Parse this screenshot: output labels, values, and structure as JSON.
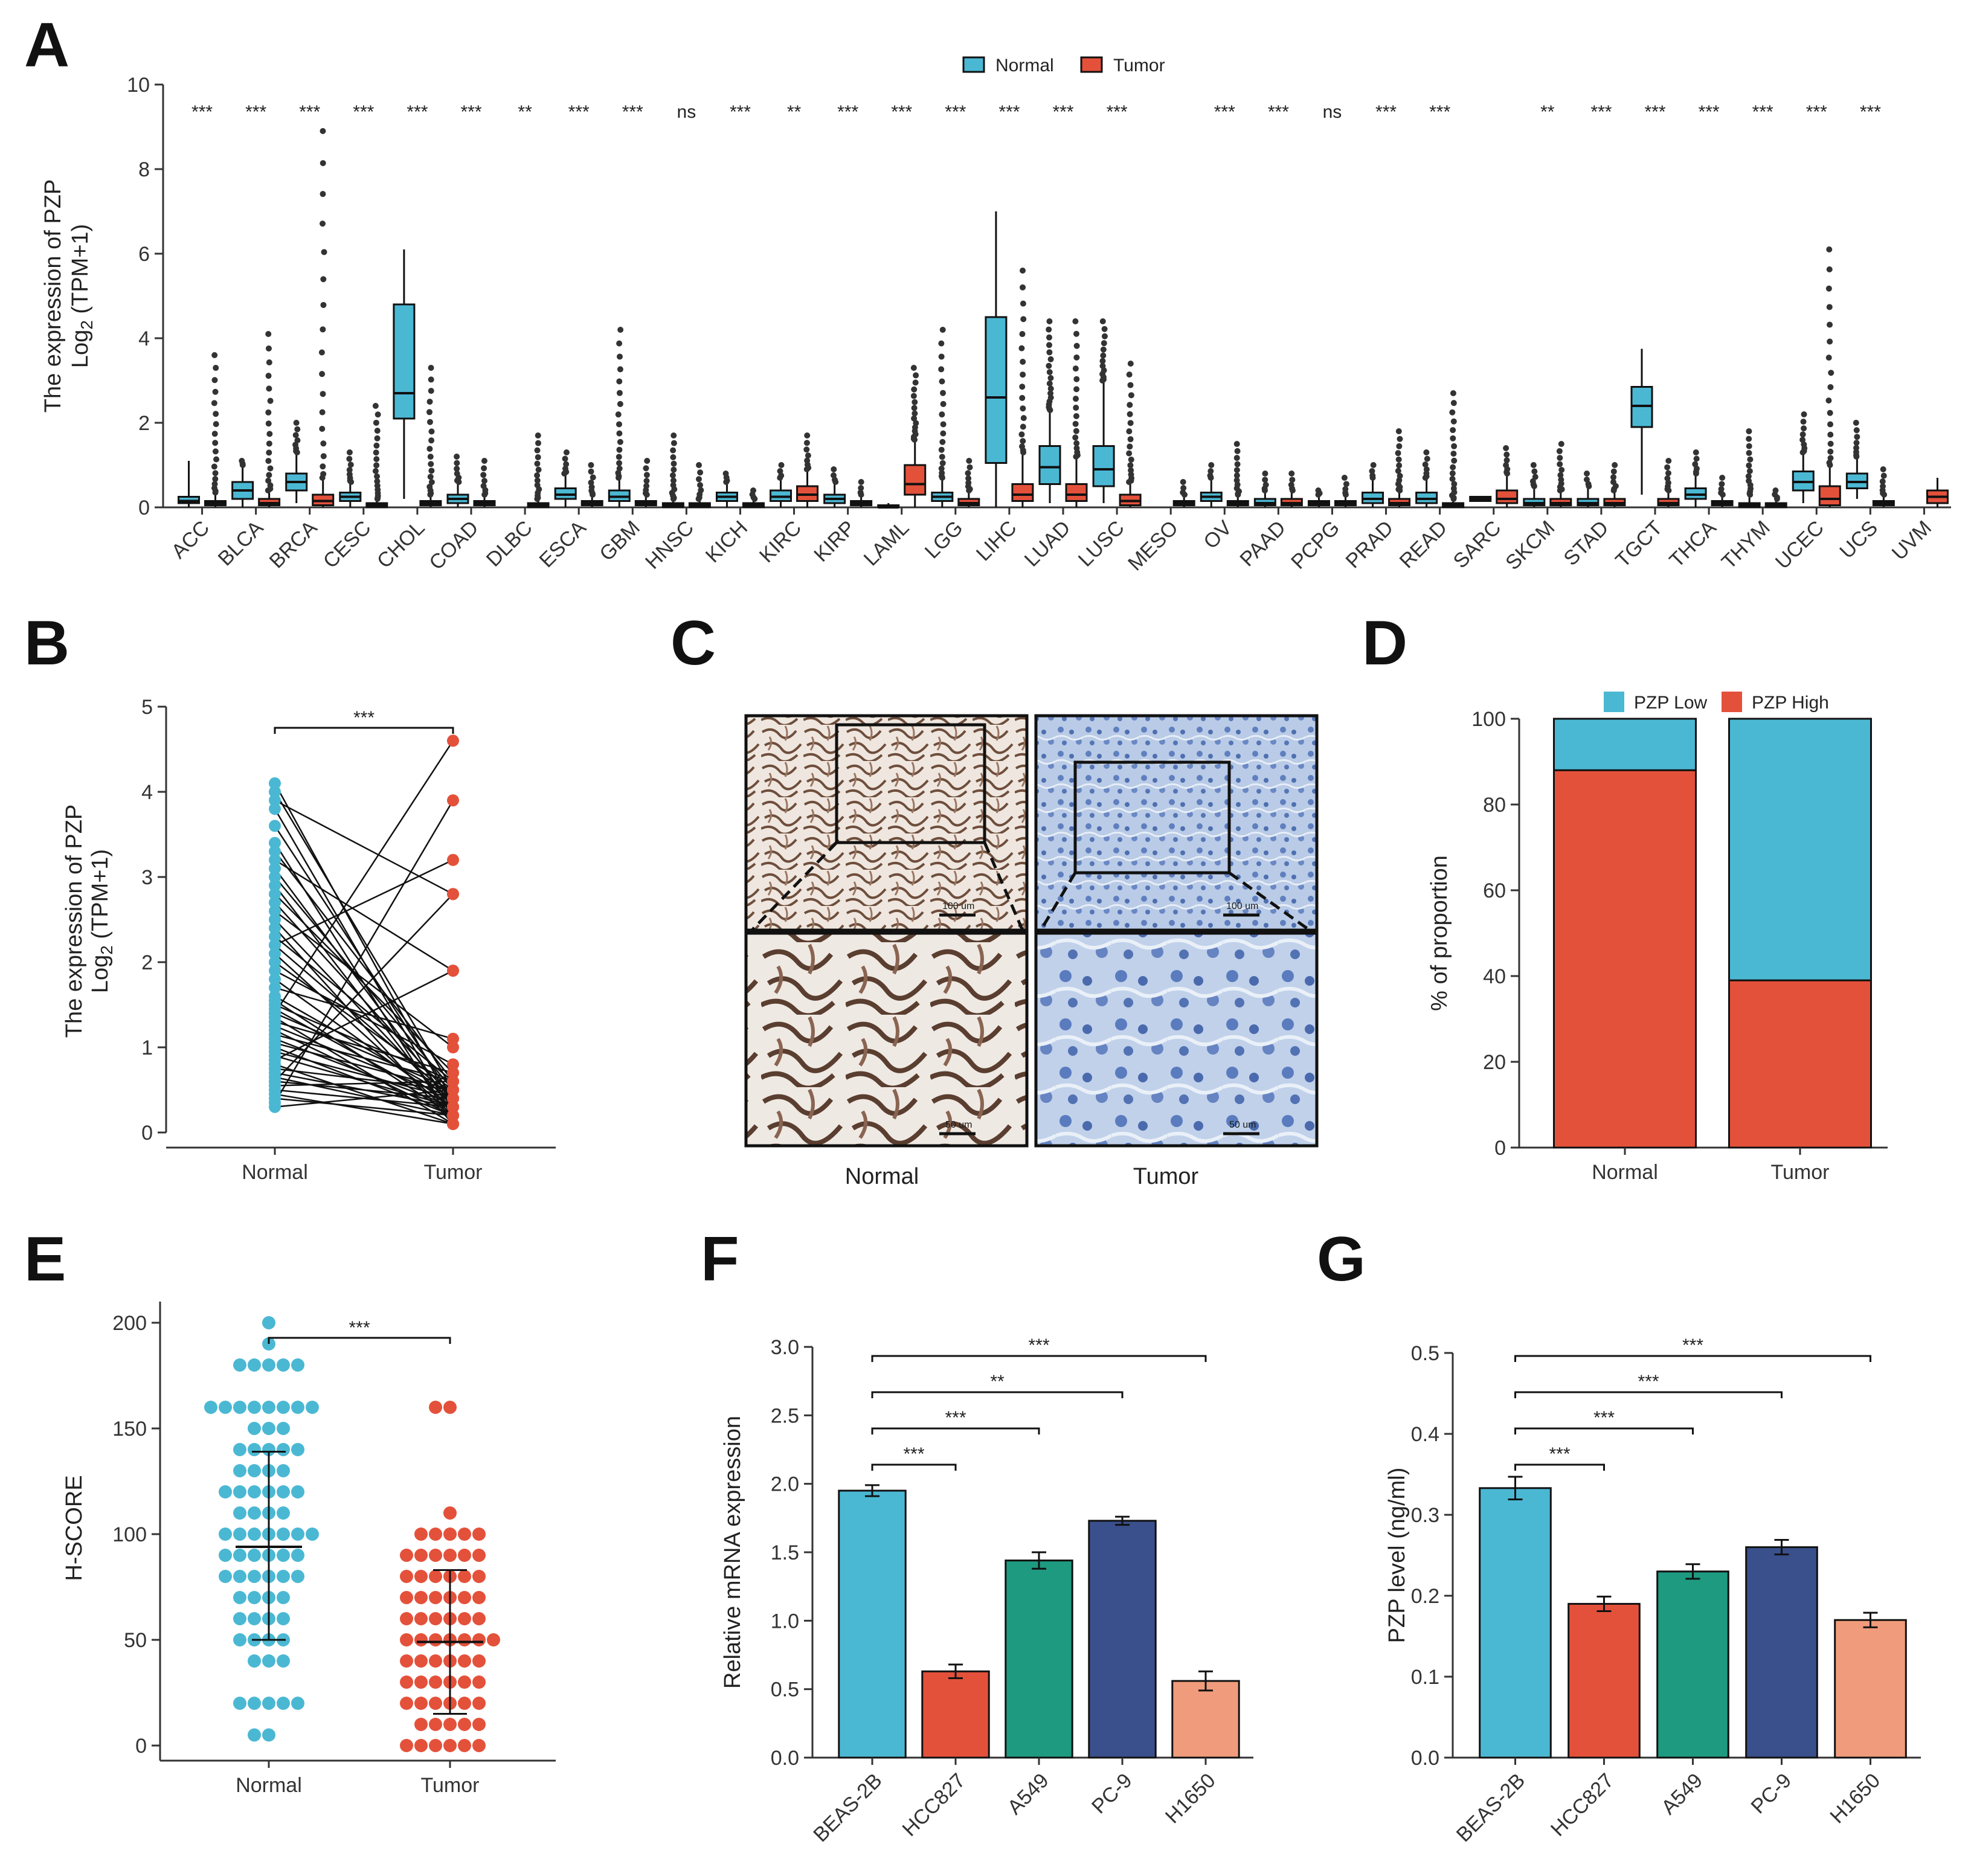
{
  "panels": {
    "A": "A",
    "B": "B",
    "C": "C",
    "D": "D",
    "E": "E",
    "F": "F",
    "G": "G"
  },
  "colors": {
    "normal": "#4bb8d3",
    "tumor": "#e4513b",
    "teal": "#1e9a80",
    "navy": "#3a508c",
    "salmon": "#f09c7c",
    "axis": "#333333"
  },
  "chart_data": [
    {
      "id": "A",
      "type": "box",
      "ylabel": "The expression of PZP",
      "ylabel2": "Log2 (TPM+1)",
      "ylim": [
        0,
        10
      ],
      "yticks": [
        0,
        2,
        4,
        6,
        8,
        10
      ],
      "legend": [
        "Normal",
        "Tumor"
      ],
      "categories": [
        "ACC",
        "BLCA",
        "BRCA",
        "CESC",
        "CHOL",
        "COAD",
        "DLBC",
        "ESCA",
        "GBM",
        "HNSC",
        "KICH",
        "KIRC",
        "KIRP",
        "LAML",
        "LGG",
        "LIHC",
        "LUAD",
        "LUSC",
        "MESO",
        "OV",
        "PAAD",
        "PCPG",
        "PRAD",
        "READ",
        "SARC",
        "SKCM",
        "STAD",
        "TGCT",
        "THCA",
        "THYM",
        "UCEC",
        "UCS",
        "UVM"
      ],
      "significance": [
        "***",
        "***",
        "***",
        "***",
        "***",
        "***",
        "**",
        "***",
        "***",
        "ns",
        "***",
        "**",
        "***",
        "***",
        "***",
        "***",
        "***",
        "***",
        "",
        "***",
        "***",
        "ns",
        "***",
        "***",
        "",
        "**",
        "***",
        "***",
        "***",
        "***",
        "***",
        "***",
        ""
      ],
      "normal": [
        {
          "q1": 0.1,
          "med": 0.15,
          "q3": 0.25,
          "wl": 0.0,
          "wh": 1.1,
          "max": 1.1
        },
        {
          "q1": 0.2,
          "med": 0.4,
          "q3": 0.6,
          "wl": 0.0,
          "wh": 1.0,
          "max": 1.1
        },
        {
          "q1": 0.4,
          "med": 0.6,
          "q3": 0.8,
          "wl": 0.1,
          "wh": 1.3,
          "max": 2.0
        },
        {
          "q1": 0.15,
          "med": 0.25,
          "q3": 0.35,
          "wl": 0.0,
          "wh": 0.6,
          "max": 1.3
        },
        {
          "q1": 2.1,
          "med": 2.7,
          "q3": 4.8,
          "wl": 0.2,
          "wh": 6.1,
          "max": 6.1
        },
        {
          "q1": 0.1,
          "med": 0.2,
          "q3": 0.3,
          "wl": 0.0,
          "wh": 0.6,
          "max": 1.2
        },
        null,
        {
          "q1": 0.2,
          "med": 0.3,
          "q3": 0.45,
          "wl": 0.0,
          "wh": 0.8,
          "max": 1.3
        },
        {
          "q1": 0.15,
          "med": 0.25,
          "q3": 0.4,
          "wl": 0.0,
          "wh": 0.7,
          "max": 4.2
        },
        {
          "q1": 0.0,
          "med": 0.05,
          "q3": 0.1,
          "wl": 0.0,
          "wh": 0.2,
          "max": 1.7
        },
        {
          "q1": 0.15,
          "med": 0.25,
          "q3": 0.35,
          "wl": 0.0,
          "wh": 0.6,
          "max": 0.8
        },
        {
          "q1": 0.15,
          "med": 0.25,
          "q3": 0.4,
          "wl": 0.0,
          "wh": 0.7,
          "max": 1.0
        },
        {
          "q1": 0.1,
          "med": 0.2,
          "q3": 0.3,
          "wl": 0.0,
          "wh": 0.6,
          "max": 0.9
        },
        {
          "q1": 0.0,
          "med": 0.0,
          "q3": 0.05,
          "wl": 0.0,
          "wh": 0.1,
          "max": 0.1
        },
        {
          "q1": 0.15,
          "med": 0.25,
          "q3": 0.35,
          "wl": 0.0,
          "wh": 0.7,
          "max": 4.2
        },
        {
          "q1": 1.05,
          "med": 2.6,
          "q3": 4.5,
          "wl": 0.0,
          "wh": 7.0,
          "max": 7.0
        },
        {
          "q1": 0.55,
          "med": 0.95,
          "q3": 1.45,
          "wl": 0.1,
          "wh": 2.3,
          "max": 4.4
        },
        {
          "q1": 0.5,
          "med": 0.9,
          "q3": 1.45,
          "wl": 0.1,
          "wh": 3.0,
          "max": 4.4
        },
        null,
        {
          "q1": 0.15,
          "med": 0.25,
          "q3": 0.35,
          "wl": 0.0,
          "wh": 0.7,
          "max": 1.0
        },
        {
          "q1": 0.05,
          "med": 0.1,
          "q3": 0.2,
          "wl": 0.0,
          "wh": 0.4,
          "max": 0.8
        },
        {
          "q1": 0.05,
          "med": 0.1,
          "q3": 0.15,
          "wl": 0.0,
          "wh": 0.3,
          "max": 0.4
        },
        {
          "q1": 0.1,
          "med": 0.2,
          "q3": 0.35,
          "wl": 0.0,
          "wh": 0.7,
          "max": 1.0
        },
        {
          "q1": 0.1,
          "med": 0.2,
          "q3": 0.35,
          "wl": 0.0,
          "wh": 0.7,
          "max": 1.3
        },
        {
          "q1": 0.15,
          "med": 0.2,
          "q3": 0.25,
          "wl": 0.15,
          "wh": 0.25,
          "max": 0.25
        },
        {
          "q1": 0.05,
          "med": 0.1,
          "q3": 0.2,
          "wl": 0.0,
          "wh": 0.5,
          "max": 1.0
        },
        {
          "q1": 0.05,
          "med": 0.1,
          "q3": 0.2,
          "wl": 0.0,
          "wh": 0.5,
          "max": 0.8
        },
        {
          "q1": 1.9,
          "med": 2.4,
          "q3": 2.85,
          "wl": 0.3,
          "wh": 3.75,
          "max": 3.75
        },
        {
          "q1": 0.2,
          "med": 0.3,
          "q3": 0.45,
          "wl": 0.0,
          "wh": 0.8,
          "max": 1.3
        },
        {
          "q1": 0.0,
          "med": 0.05,
          "q3": 0.1,
          "wl": 0.0,
          "wh": 0.3,
          "max": 1.8
        },
        {
          "q1": 0.4,
          "med": 0.6,
          "q3": 0.85,
          "wl": 0.1,
          "wh": 1.3,
          "max": 2.2
        },
        {
          "q1": 0.45,
          "med": 0.6,
          "q3": 0.8,
          "wl": 0.2,
          "wh": 1.2,
          "max": 2.0
        },
        null
      ],
      "tumor": [
        {
          "q1": 0.05,
          "med": 0.1,
          "q3": 0.15,
          "wl": 0.0,
          "wh": 0.35,
          "max": 3.6
        },
        {
          "q1": 0.05,
          "med": 0.1,
          "q3": 0.2,
          "wl": 0.0,
          "wh": 0.4,
          "max": 4.1
        },
        {
          "q1": 0.05,
          "med": 0.15,
          "q3": 0.3,
          "wl": 0.0,
          "wh": 0.7,
          "max": 8.9
        },
        {
          "q1": 0.0,
          "med": 0.05,
          "q3": 0.1,
          "wl": 0.0,
          "wh": 0.2,
          "max": 2.4
        },
        {
          "q1": 0.05,
          "med": 0.1,
          "q3": 0.15,
          "wl": 0.0,
          "wh": 0.3,
          "max": 3.3
        },
        {
          "q1": 0.05,
          "med": 0.1,
          "q3": 0.15,
          "wl": 0.0,
          "wh": 0.3,
          "max": 1.1
        },
        {
          "q1": 0.0,
          "med": 0.05,
          "q3": 0.1,
          "wl": 0.0,
          "wh": 0.2,
          "max": 1.7
        },
        {
          "q1": 0.05,
          "med": 0.1,
          "q3": 0.15,
          "wl": 0.0,
          "wh": 0.3,
          "max": 1.0
        },
        {
          "q1": 0.05,
          "med": 0.1,
          "q3": 0.15,
          "wl": 0.0,
          "wh": 0.3,
          "max": 1.1
        },
        {
          "q1": 0.0,
          "med": 0.05,
          "q3": 0.1,
          "wl": 0.0,
          "wh": 0.2,
          "max": 1.0
        },
        {
          "q1": 0.0,
          "med": 0.05,
          "q3": 0.1,
          "wl": 0.0,
          "wh": 0.2,
          "max": 0.4
        },
        {
          "q1": 0.15,
          "med": 0.3,
          "q3": 0.5,
          "wl": 0.0,
          "wh": 0.9,
          "max": 1.7
        },
        {
          "q1": 0.05,
          "med": 0.1,
          "q3": 0.15,
          "wl": 0.0,
          "wh": 0.3,
          "max": 0.6
        },
        {
          "q1": 0.3,
          "med": 0.55,
          "q3": 1.0,
          "wl": 0.0,
          "wh": 1.6,
          "max": 3.3
        },
        {
          "q1": 0.05,
          "med": 0.1,
          "q3": 0.2,
          "wl": 0.0,
          "wh": 0.4,
          "max": 1.1
        },
        {
          "q1": 0.15,
          "med": 0.3,
          "q3": 0.55,
          "wl": 0.0,
          "wh": 1.3,
          "max": 5.6
        },
        {
          "q1": 0.15,
          "med": 0.3,
          "q3": 0.55,
          "wl": 0.0,
          "wh": 1.2,
          "max": 4.4
        },
        {
          "q1": 0.05,
          "med": 0.15,
          "q3": 0.3,
          "wl": 0.0,
          "wh": 0.6,
          "max": 3.4
        },
        {
          "q1": 0.05,
          "med": 0.1,
          "q3": 0.15,
          "wl": 0.0,
          "wh": 0.3,
          "max": 0.6
        },
        {
          "q1": 0.05,
          "med": 0.1,
          "q3": 0.15,
          "wl": 0.0,
          "wh": 0.3,
          "max": 1.5
        },
        {
          "q1": 0.05,
          "med": 0.1,
          "q3": 0.2,
          "wl": 0.0,
          "wh": 0.4,
          "max": 0.8
        },
        {
          "q1": 0.05,
          "med": 0.1,
          "q3": 0.15,
          "wl": 0.0,
          "wh": 0.3,
          "max": 0.7
        },
        {
          "q1": 0.05,
          "med": 0.1,
          "q3": 0.2,
          "wl": 0.0,
          "wh": 0.4,
          "max": 1.8
        },
        {
          "q1": 0.0,
          "med": 0.05,
          "q3": 0.1,
          "wl": 0.0,
          "wh": 0.2,
          "max": 2.7
        },
        {
          "q1": 0.1,
          "med": 0.2,
          "q3": 0.4,
          "wl": 0.0,
          "wh": 0.8,
          "max": 1.4
        },
        {
          "q1": 0.05,
          "med": 0.1,
          "q3": 0.2,
          "wl": 0.0,
          "wh": 0.4,
          "max": 1.5
        },
        {
          "q1": 0.05,
          "med": 0.1,
          "q3": 0.2,
          "wl": 0.0,
          "wh": 0.4,
          "max": 1.0
        },
        {
          "q1": 0.05,
          "med": 0.1,
          "q3": 0.2,
          "wl": 0.0,
          "wh": 0.4,
          "max": 1.1
        },
        {
          "q1": 0.05,
          "med": 0.1,
          "q3": 0.15,
          "wl": 0.0,
          "wh": 0.3,
          "max": 0.7
        },
        {
          "q1": 0.0,
          "med": 0.05,
          "q3": 0.1,
          "wl": 0.0,
          "wh": 0.2,
          "max": 0.4
        },
        {
          "q1": 0.05,
          "med": 0.2,
          "q3": 0.5,
          "wl": 0.0,
          "wh": 1.0,
          "max": 6.1
        },
        {
          "q1": 0.05,
          "med": 0.1,
          "q3": 0.15,
          "wl": 0.0,
          "wh": 0.3,
          "max": 0.9
        },
        {
          "q1": 0.1,
          "med": 0.25,
          "q3": 0.4,
          "wl": 0.0,
          "wh": 0.7,
          "max": 0.7
        }
      ]
    },
    {
      "id": "B",
      "type": "paired-scatter",
      "ylabel": "The expression of PZP",
      "ylabel2": "Log2 (TPM+1)",
      "ylim": [
        0,
        5
      ],
      "yticks": [
        0,
        1,
        2,
        3,
        4,
        5
      ],
      "categories": [
        "Normal",
        "Tumor"
      ],
      "significance": "***",
      "pairs": [
        [
          4.1,
          0.3
        ],
        [
          4.0,
          0.5
        ],
        [
          3.9,
          2.8
        ],
        [
          3.8,
          0.2
        ],
        [
          3.6,
          0.4
        ],
        [
          3.4,
          0.1
        ],
        [
          3.3,
          0.6
        ],
        [
          3.2,
          1.9
        ],
        [
          3.1,
          0.3
        ],
        [
          3.0,
          0.5
        ],
        [
          2.9,
          0.2
        ],
        [
          2.8,
          0.7
        ],
        [
          2.7,
          0.4
        ],
        [
          2.6,
          1.0
        ],
        [
          2.5,
          0.3
        ],
        [
          2.4,
          0.1
        ],
        [
          2.3,
          0.6
        ],
        [
          2.2,
          0.4
        ],
        [
          2.2,
          3.2
        ],
        [
          2.1,
          0.2
        ],
        [
          2.0,
          0.5
        ],
        [
          1.9,
          0.8
        ],
        [
          1.8,
          0.3
        ],
        [
          1.7,
          1.1
        ],
        [
          1.6,
          0.4
        ],
        [
          1.55,
          0.2
        ],
        [
          1.5,
          0.6
        ],
        [
          1.45,
          0.3
        ],
        [
          1.4,
          0.5
        ],
        [
          1.35,
          0.1
        ],
        [
          1.3,
          0.7
        ],
        [
          1.25,
          0.4
        ],
        [
          1.2,
          0.2
        ],
        [
          1.15,
          0.6
        ],
        [
          1.1,
          0.3
        ],
        [
          1.05,
          0.5
        ],
        [
          1.0,
          0.2
        ],
        [
          0.95,
          0.4
        ],
        [
          0.9,
          0.3
        ],
        [
          0.85,
          1.9
        ],
        [
          0.8,
          0.1
        ],
        [
          0.75,
          0.5
        ],
        [
          0.7,
          0.3
        ],
        [
          0.65,
          0.2
        ],
        [
          0.6,
          0.4
        ],
        [
          0.55,
          0.6
        ],
        [
          0.5,
          0.3
        ],
        [
          0.45,
          0.1
        ],
        [
          0.4,
          0.2
        ],
        [
          0.3,
          0.5
        ],
        [
          1.4,
          4.6
        ],
        [
          0.35,
          3.9
        ],
        [
          0.6,
          2.8
        ]
      ]
    },
    {
      "id": "D",
      "type": "stacked-bar",
      "ylabel": "% of proportion",
      "ylim": [
        0,
        100
      ],
      "yticks": [
        0,
        20,
        40,
        60,
        80,
        100
      ],
      "legend": [
        "PZP Low",
        "PZP High"
      ],
      "categories": [
        "Normal",
        "Tumor"
      ],
      "series": [
        {
          "name": "PZP High",
          "values": [
            88,
            39
          ]
        },
        {
          "name": "PZP Low",
          "values": [
            12,
            61
          ]
        }
      ]
    },
    {
      "id": "E",
      "type": "dot-plot",
      "ylabel": "H-SCORE",
      "ylim": [
        0,
        210
      ],
      "yticks": [
        0,
        50,
        100,
        150,
        200
      ],
      "categories": [
        "Normal",
        "Tumor"
      ],
      "significance": "***",
      "summary": [
        {
          "mean": 94,
          "low": 50,
          "high": 139
        },
        {
          "mean": 49,
          "low": 15,
          "high": 83
        }
      ],
      "normal_values": [
        200,
        190,
        180,
        180,
        180,
        180,
        180,
        160,
        160,
        160,
        160,
        160,
        160,
        160,
        160,
        150,
        150,
        150,
        140,
        140,
        140,
        140,
        140,
        130,
        130,
        130,
        130,
        120,
        120,
        120,
        120,
        120,
        120,
        110,
        110,
        110,
        110,
        100,
        100,
        100,
        100,
        100,
        100,
        100,
        90,
        90,
        90,
        90,
        90,
        90,
        80,
        80,
        80,
        80,
        80,
        80,
        70,
        70,
        70,
        70,
        60,
        60,
        60,
        60,
        50,
        50,
        50,
        50,
        40,
        40,
        40,
        20,
        20,
        20,
        20,
        20,
        5,
        5
      ],
      "tumor_values": [
        160,
        160,
        110,
        100,
        100,
        100,
        100,
        100,
        90,
        90,
        90,
        90,
        90,
        90,
        80,
        80,
        80,
        80,
        80,
        80,
        70,
        70,
        70,
        70,
        70,
        70,
        60,
        60,
        60,
        60,
        60,
        60,
        50,
        50,
        50,
        50,
        50,
        50,
        50,
        40,
        40,
        40,
        40,
        40,
        40,
        30,
        30,
        30,
        30,
        30,
        30,
        20,
        20,
        20,
        20,
        20,
        20,
        10,
        10,
        10,
        10,
        10,
        0,
        0,
        0,
        0,
        0,
        0
      ]
    },
    {
      "id": "F",
      "type": "bar",
      "ylabel": "Relative mRNA expression",
      "ylim": [
        0,
        3.0
      ],
      "yticks": [
        0.0,
        0.5,
        1.0,
        1.5,
        2.0,
        2.5,
        3.0
      ],
      "categories": [
        "BEAS-2B",
        "HCC827",
        "A549",
        "PC-9",
        "H1650"
      ],
      "values": [
        1.95,
        0.63,
        1.44,
        1.73,
        0.56
      ],
      "errors": [
        0.04,
        0.05,
        0.06,
        0.03,
        0.07
      ],
      "comparisons": [
        {
          "to": 1,
          "sig": "***"
        },
        {
          "to": 2,
          "sig": "***"
        },
        {
          "to": 3,
          "sig": "**"
        },
        {
          "to": 4,
          "sig": "***"
        }
      ]
    },
    {
      "id": "G",
      "type": "bar",
      "ylabel": "PZP level (ng/ml)",
      "ylim": [
        0,
        0.5
      ],
      "yticks": [
        0.0,
        0.1,
        0.2,
        0.3,
        0.4,
        0.5
      ],
      "categories": [
        "BEAS-2B",
        "HCC827",
        "A549",
        "PC-9",
        "H1650"
      ],
      "values": [
        0.333,
        0.19,
        0.23,
        0.26,
        0.17
      ],
      "errors": [
        0.014,
        0.009,
        0.009,
        0.009,
        0.009
      ],
      "comparisons": [
        {
          "to": 1,
          "sig": "***"
        },
        {
          "to": 2,
          "sig": "***"
        },
        {
          "to": 3,
          "sig": "***"
        },
        {
          "to": 4,
          "sig": "***"
        }
      ]
    }
  ],
  "panel_c": {
    "xlabels": [
      "Normal",
      "Tumor"
    ],
    "scale_top": "100 um",
    "scale_bottom": "50 um"
  }
}
